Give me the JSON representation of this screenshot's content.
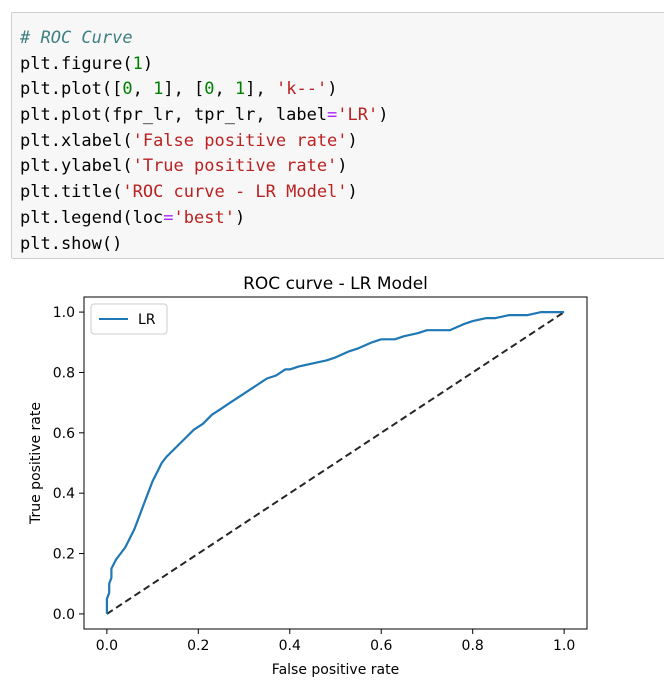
{
  "code_cell": {
    "lines": [
      [
        {
          "t": "# ROC Curve",
          "k": "comment"
        }
      ],
      [
        {
          "t": "plt.figure(",
          "k": "plain"
        },
        {
          "t": "1",
          "k": "number"
        },
        {
          "t": ")",
          "k": "plain"
        }
      ],
      [
        {
          "t": "plt.plot([",
          "k": "plain"
        },
        {
          "t": "0",
          "k": "number"
        },
        {
          "t": ", ",
          "k": "plain"
        },
        {
          "t": "1",
          "k": "number"
        },
        {
          "t": "], [",
          "k": "plain"
        },
        {
          "t": "0",
          "k": "number"
        },
        {
          "t": ", ",
          "k": "plain"
        },
        {
          "t": "1",
          "k": "number"
        },
        {
          "t": "], ",
          "k": "plain"
        },
        {
          "t": "'k--'",
          "k": "string"
        },
        {
          "t": ")",
          "k": "plain"
        }
      ],
      [
        {
          "t": "plt.plot(fpr_lr, tpr_lr, label",
          "k": "plain"
        },
        {
          "t": "=",
          "k": "op"
        },
        {
          "t": "'LR'",
          "k": "string"
        },
        {
          "t": ")",
          "k": "plain"
        }
      ],
      [
        {
          "t": "plt.xlabel(",
          "k": "plain"
        },
        {
          "t": "'False positive rate'",
          "k": "string"
        },
        {
          "t": ")",
          "k": "plain"
        }
      ],
      [
        {
          "t": "plt.ylabel(",
          "k": "plain"
        },
        {
          "t": "'True positive rate'",
          "k": "string"
        },
        {
          "t": ")",
          "k": "plain"
        }
      ],
      [
        {
          "t": "plt.title(",
          "k": "plain"
        },
        {
          "t": "'ROC curve - LR Model'",
          "k": "string"
        },
        {
          "t": ")",
          "k": "plain"
        }
      ],
      [
        {
          "t": "plt.legend(loc",
          "k": "plain"
        },
        {
          "t": "=",
          "k": "op"
        },
        {
          "t": "'best'",
          "k": "string"
        },
        {
          "t": ")",
          "k": "plain"
        }
      ],
      [
        {
          "t": "plt.show()",
          "k": "plain"
        }
      ]
    ]
  },
  "colors": {
    "cell_background": "#f7f7f7",
    "cell_border": "#cfcfcf",
    "comment": "#408080",
    "string": "#ba2121",
    "number": "#008000",
    "operator": "#aa22ff",
    "series_lr": "#1f77b4",
    "diagonal": "#000000"
  },
  "chart_data": {
    "type": "line",
    "title": "ROC curve - LR Model",
    "xlabel": "False positive rate",
    "ylabel": "True positive rate",
    "xlim": [
      -0.05,
      1.05
    ],
    "ylim": [
      -0.05,
      1.05
    ],
    "xticks": [
      0.0,
      0.2,
      0.4,
      0.6,
      0.8,
      1.0
    ],
    "yticks": [
      0.0,
      0.2,
      0.4,
      0.6,
      0.8,
      1.0
    ],
    "xtick_labels": [
      "0.0",
      "0.2",
      "0.4",
      "0.6",
      "0.8",
      "1.0"
    ],
    "ytick_labels": [
      "0.0",
      "0.2",
      "0.4",
      "0.6",
      "0.8",
      "1.0"
    ],
    "grid": false,
    "legend": {
      "placement": "upper-left",
      "entries": [
        "LR"
      ]
    },
    "series": [
      {
        "name": "LR",
        "style": "solid",
        "x": [
          0.0,
          0.0,
          0.005,
          0.005,
          0.01,
          0.01,
          0.02,
          0.03,
          0.04,
          0.05,
          0.06,
          0.065,
          0.07,
          0.08,
          0.09,
          0.1,
          0.11,
          0.12,
          0.13,
          0.15,
          0.17,
          0.19,
          0.21,
          0.23,
          0.25,
          0.27,
          0.29,
          0.31,
          0.33,
          0.35,
          0.37,
          0.39,
          0.4,
          0.42,
          0.45,
          0.48,
          0.5,
          0.53,
          0.55,
          0.58,
          0.6,
          0.63,
          0.65,
          0.68,
          0.7,
          0.72,
          0.75,
          0.78,
          0.8,
          0.83,
          0.85,
          0.88,
          0.9,
          0.92,
          0.95,
          0.97,
          1.0
        ],
        "y": [
          0.0,
          0.05,
          0.07,
          0.1,
          0.12,
          0.15,
          0.18,
          0.2,
          0.22,
          0.25,
          0.28,
          0.3,
          0.32,
          0.36,
          0.4,
          0.44,
          0.47,
          0.5,
          0.52,
          0.55,
          0.58,
          0.61,
          0.63,
          0.66,
          0.68,
          0.7,
          0.72,
          0.74,
          0.76,
          0.78,
          0.79,
          0.81,
          0.81,
          0.82,
          0.83,
          0.84,
          0.85,
          0.87,
          0.88,
          0.9,
          0.91,
          0.91,
          0.92,
          0.93,
          0.94,
          0.94,
          0.94,
          0.96,
          0.97,
          0.98,
          0.98,
          0.99,
          0.99,
          0.99,
          1.0,
          1.0,
          1.0
        ]
      },
      {
        "name": "",
        "style": "dashed",
        "x": [
          0,
          1
        ],
        "y": [
          0,
          1
        ]
      }
    ]
  }
}
